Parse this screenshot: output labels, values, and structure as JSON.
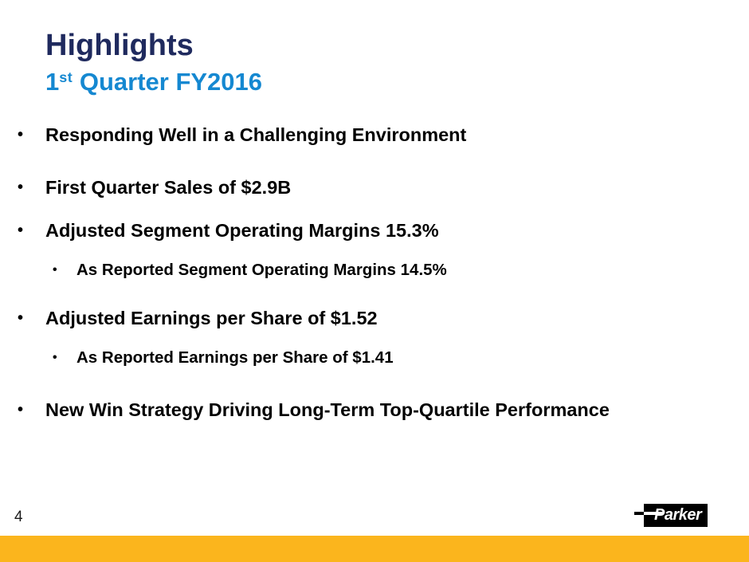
{
  "slide": {
    "title": "Highlights",
    "subtitle": {
      "number": "1",
      "ordinal": "st",
      "rest": " Quarter FY2016"
    },
    "bullets": [
      {
        "label": "Responding Well in a Challenging Environment",
        "level": 1
      },
      {
        "label": "First Quarter Sales of $2.9B",
        "level": 1
      },
      {
        "label": "Adjusted Segment Operating Margins 15.3%",
        "level": 1
      },
      {
        "label": "As Reported Segment Operating Margins 14.5%",
        "level": 2
      },
      {
        "label": "Adjusted Earnings per Share of $1.52",
        "level": 1
      },
      {
        "label": "As Reported Earnings per Share of $1.41",
        "level": 2
      },
      {
        "label": "New Win Strategy Driving Long-Term Top-Quartile Performance",
        "level": 1
      }
    ],
    "bullet_glyph": "•",
    "page_number": "4",
    "logo_text": "Parker"
  },
  "colors": {
    "title_navy": "#1F2A5E",
    "subtitle_blue": "#1588D1",
    "body_text": "#000000",
    "brand_gold": "#FBB51D",
    "logo_black": "#000000"
  }
}
